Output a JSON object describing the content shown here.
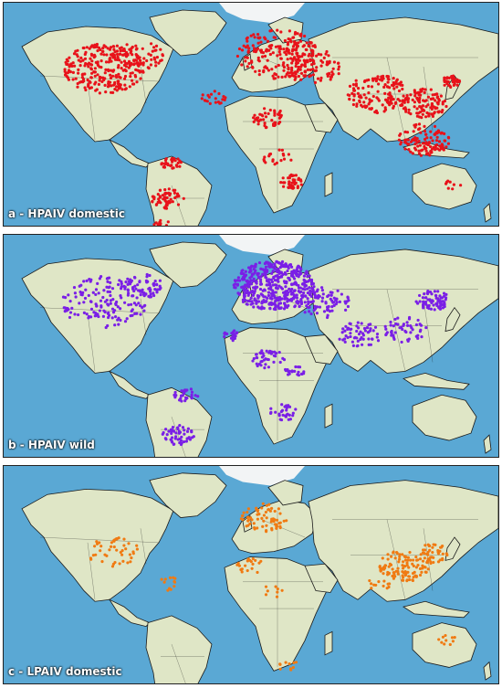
{
  "panels": [
    {
      "id": "a",
      "label": "a - HPAIV domestic",
      "dot_color": "#e8121a",
      "category": "HPAIV domestic"
    },
    {
      "id": "b",
      "label": "b - HPAIV wild",
      "dot_color": "#7a1fe6",
      "category": "HPAIV wild"
    },
    {
      "id": "c",
      "label": "c - LPAIV domestic",
      "dot_color": "#f07a12",
      "category": "LPAIV domestic"
    }
  ],
  "colors": {
    "ocean": "#5aa8d4",
    "land": "#dfe6c6",
    "ice": "#f2f4f5",
    "border": "#1a1a1a"
  }
}
